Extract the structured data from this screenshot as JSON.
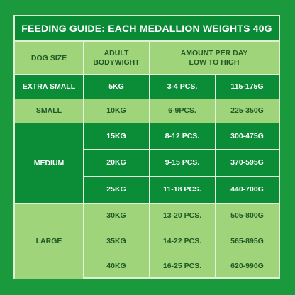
{
  "title": "FEEDING GUIDE: EACH MEDALLION WEIGHTS 40G",
  "headers": {
    "dog_size": "DOG SIZE",
    "adult_bodyweight": "ADULT\nBODYWIGHT",
    "amount_per_day": "AMOUNT PER DAY\nLOW TO HIGH"
  },
  "groups": [
    {
      "size": "EXTRA SMALL"
    },
    {
      "size": "SMALL"
    },
    {
      "size": "MEDIUM"
    },
    {
      "size": "LARGE"
    }
  ],
  "rows": [
    {
      "weight": "5KG",
      "pieces": "3-4 PCS.",
      "grams": "115-175G"
    },
    {
      "weight": "10KG",
      "pieces": "6-9PCS.",
      "grams": "225-350G"
    },
    {
      "weight": "15KG",
      "pieces": "8-12 PCS.",
      "grams": "300-475G"
    },
    {
      "weight": "20KG",
      "pieces": "9-15 PCS.",
      "grams": "370-595G"
    },
    {
      "weight": "25KG",
      "pieces": "11-18 PCS.",
      "grams": "440-700G"
    },
    {
      "weight": "30KG",
      "pieces": "13-20 PCS.",
      "grams": "505-800G"
    },
    {
      "weight": "35KG",
      "pieces": "14-22 PCS.",
      "grams": "565-895G"
    },
    {
      "weight": "40KG",
      "pieces": "16-25 PCS.",
      "grams": "620-990G"
    }
  ],
  "colors": {
    "background": "#1a9a3c",
    "dark_green": "#0b8c36",
    "light_green": "#9fd47a",
    "light_text": "#1f5a26",
    "border": "#e4f3db"
  }
}
